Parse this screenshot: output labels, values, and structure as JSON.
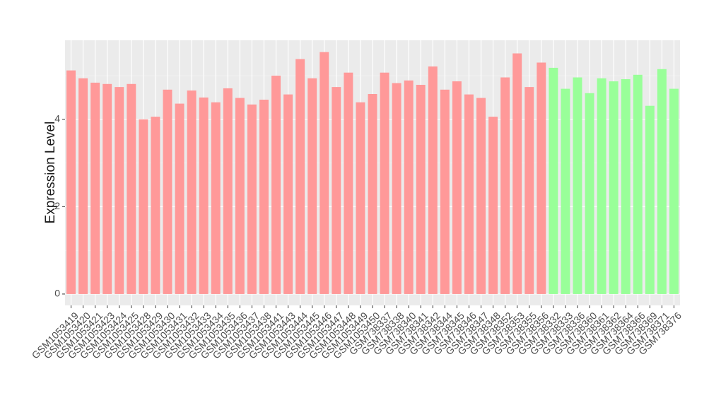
{
  "chart_data": {
    "type": "bar",
    "y_label": "Expression Level",
    "categories": [
      "GSM1053419",
      "GSM1053420",
      "GSM1053421",
      "GSM1053423",
      "GSM1053424",
      "GSM1053425",
      "GSM1053428",
      "GSM1053429",
      "GSM1053430",
      "GSM1053431",
      "GSM1053432",
      "GSM1053433",
      "GSM1053434",
      "GSM1053435",
      "GSM1053436",
      "GSM1053437",
      "GSM1053438",
      "GSM1053441",
      "GSM1053443",
      "GSM1053444",
      "GSM1053445",
      "GSM1053446",
      "GSM1053447",
      "GSM1053448",
      "GSM1053449",
      "GSM1053450",
      "GSM738337",
      "GSM738338",
      "GSM738340",
      "GSM738341",
      "GSM738342",
      "GSM738344",
      "GSM738345",
      "GSM738346",
      "GSM738347",
      "GSM738348",
      "GSM738352",
      "GSM738353",
      "GSM738355",
      "GSM738356",
      "GSM738332",
      "GSM738333",
      "GSM738336",
      "GSM738360",
      "GSM738361",
      "GSM738362",
      "GSM738364",
      "GSM738366",
      "GSM738369",
      "GSM738371",
      "GSM738376"
    ],
    "values": [
      5.12,
      4.94,
      4.84,
      4.81,
      4.74,
      4.81,
      4.0,
      4.06,
      4.68,
      4.36,
      4.66,
      4.5,
      4.39,
      4.71,
      4.49,
      4.34,
      4.45,
      5.0,
      4.57,
      5.38,
      4.94,
      5.54,
      4.74,
      5.07,
      4.39,
      4.58,
      5.07,
      4.83,
      4.89,
      4.79,
      5.21,
      4.68,
      4.87,
      4.57,
      4.49,
      4.06,
      4.96,
      5.51,
      4.74,
      5.3,
      5.18,
      4.7,
      4.96,
      4.6,
      4.94,
      4.87,
      4.92,
      5.02,
      4.31,
      5.15,
      4.7
    ],
    "colors": [
      "#ff9999",
      "#ff9999",
      "#ff9999",
      "#ff9999",
      "#ff9999",
      "#ff9999",
      "#ff9999",
      "#ff9999",
      "#ff9999",
      "#ff9999",
      "#ff9999",
      "#ff9999",
      "#ff9999",
      "#ff9999",
      "#ff9999",
      "#ff9999",
      "#ff9999",
      "#ff9999",
      "#ff9999",
      "#ff9999",
      "#ff9999",
      "#ff9999",
      "#ff9999",
      "#ff9999",
      "#ff9999",
      "#ff9999",
      "#ff9999",
      "#ff9999",
      "#ff9999",
      "#ff9999",
      "#ff9999",
      "#ff9999",
      "#ff9999",
      "#ff9999",
      "#ff9999",
      "#ff9999",
      "#ff9999",
      "#ff9999",
      "#ff9999",
      "#ff9999",
      "#99ff99",
      "#99ff99",
      "#99ff99",
      "#99ff99",
      "#99ff99",
      "#99ff99",
      "#99ff99",
      "#99ff99",
      "#99ff99",
      "#99ff99",
      "#99ff99"
    ],
    "ylim": [
      -0.26,
      5.81
    ],
    "yticks": [
      0,
      2,
      4
    ],
    "yminor_ticks": [
      1,
      3,
      5
    ],
    "grid": true
  }
}
